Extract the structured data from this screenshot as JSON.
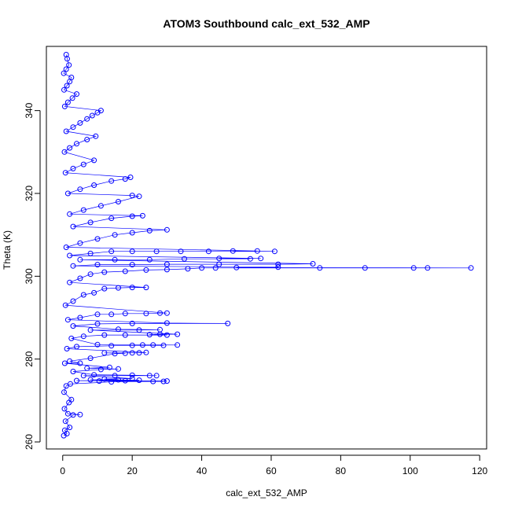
{
  "chart_data": {
    "type": "scatter",
    "title": "ATOM3 Southbound calc_ext_532_AMP",
    "xlabel": "calc_ext_532_AMP",
    "ylabel": "Theta (K)",
    "xlim": [
      -4.7,
      122.0
    ],
    "ylim": [
      258.3,
      355.5
    ],
    "x_ticks": [
      0,
      20,
      40,
      60,
      80,
      100,
      120
    ],
    "y_ticks": [
      260,
      280,
      300,
      320,
      340
    ],
    "grid": false,
    "legend": "none",
    "series": [
      {
        "color": "#0000ff",
        "marker": "open-circle",
        "connected": true,
        "points": [
          [
            0.3,
            261.5
          ],
          [
            0.6,
            262.8
          ],
          [
            1.2,
            262.0
          ],
          [
            2.0,
            263.5
          ],
          [
            0.8,
            265.0
          ],
          [
            1.5,
            266.8
          ],
          [
            3.0,
            266.5
          ],
          [
            5.0,
            266.6
          ],
          [
            0.5,
            268.0
          ],
          [
            1.8,
            269.5
          ],
          [
            2.5,
            270.2
          ],
          [
            0.4,
            272.0
          ],
          [
            1.0,
            273.5
          ],
          [
            2.2,
            274.0
          ],
          [
            4.0,
            274.8
          ],
          [
            8.0,
            275.0
          ],
          [
            10.5,
            274.7
          ],
          [
            12.0,
            275.2
          ],
          [
            14.0,
            274.5
          ],
          [
            16.0,
            275.0
          ],
          [
            18.0,
            274.8
          ],
          [
            20.0,
            275.3
          ],
          [
            22.0,
            274.9
          ],
          [
            26.0,
            274.6
          ],
          [
            29.0,
            274.6
          ],
          [
            30.0,
            274.7
          ],
          [
            6.0,
            276.0
          ],
          [
            9.0,
            276.2
          ],
          [
            15.0,
            276.0
          ],
          [
            20.0,
            276.1
          ],
          [
            25.0,
            276.0
          ],
          [
            27.0,
            276.0
          ],
          [
            3.0,
            277.0
          ],
          [
            7.0,
            277.8
          ],
          [
            11.0,
            277.5
          ],
          [
            13.5,
            278.0
          ],
          [
            16.0,
            277.6
          ],
          [
            0.6,
            279.0
          ],
          [
            2.0,
            279.5
          ],
          [
            5.0,
            279.0
          ],
          [
            8.0,
            280.2
          ],
          [
            12.0,
            281.5
          ],
          [
            15.0,
            281.3
          ],
          [
            18.0,
            281.4
          ],
          [
            20.0,
            281.5
          ],
          [
            22.0,
            281.5
          ],
          [
            24.0,
            281.6
          ],
          [
            1.2,
            282.5
          ],
          [
            4.0,
            283.0
          ],
          [
            10.0,
            283.5
          ],
          [
            14.0,
            283.2
          ],
          [
            20.0,
            283.3
          ],
          [
            23.0,
            283.4
          ],
          [
            26.0,
            283.4
          ],
          [
            29.0,
            283.3
          ],
          [
            33.0,
            283.4
          ],
          [
            2.5,
            285.0
          ],
          [
            6.0,
            285.5
          ],
          [
            12.0,
            285.8
          ],
          [
            18.0,
            285.8
          ],
          [
            25.0,
            285.9
          ],
          [
            28.0,
            286.0
          ],
          [
            30.0,
            285.8
          ],
          [
            33.0,
            286.0
          ],
          [
            8.0,
            287.0
          ],
          [
            16.0,
            287.2
          ],
          [
            22.0,
            287.0
          ],
          [
            28.0,
            287.1
          ],
          [
            3.0,
            288.0
          ],
          [
            10.0,
            288.5
          ],
          [
            20.0,
            288.6
          ],
          [
            30.0,
            288.7
          ],
          [
            47.5,
            288.6
          ],
          [
            1.5,
            289.5
          ],
          [
            5.0,
            290.0
          ],
          [
            10.0,
            290.8
          ],
          [
            14.0,
            290.8
          ],
          [
            18.0,
            291.0
          ],
          [
            24.0,
            291.0
          ],
          [
            28.0,
            291.1
          ],
          [
            30.0,
            291.1
          ],
          [
            0.8,
            293.0
          ],
          [
            3.0,
            294.0
          ],
          [
            6.0,
            295.5
          ],
          [
            9.0,
            296.0
          ],
          [
            12.0,
            297.0
          ],
          [
            16.0,
            297.2
          ],
          [
            20.0,
            297.3
          ],
          [
            24.0,
            297.3
          ],
          [
            2.0,
            298.5
          ],
          [
            5.0,
            299.5
          ],
          [
            8.0,
            300.5
          ],
          [
            12.0,
            301.0
          ],
          [
            18.0,
            301.2
          ],
          [
            24.0,
            301.5
          ],
          [
            30.0,
            301.6
          ],
          [
            36.0,
            301.8
          ],
          [
            40.0,
            302.0
          ],
          [
            44.0,
            302.0
          ],
          [
            50.0,
            302.1
          ],
          [
            62.0,
            302.2
          ],
          [
            74.0,
            302.0
          ],
          [
            87.0,
            302.0
          ],
          [
            101.0,
            302.0
          ],
          [
            105.0,
            302.0
          ],
          [
            117.5,
            302.0
          ],
          [
            3.0,
            302.5
          ],
          [
            10.0,
            302.8
          ],
          [
            20.0,
            302.8
          ],
          [
            30.0,
            302.9
          ],
          [
            45.0,
            302.9
          ],
          [
            62.0,
            302.9
          ],
          [
            72.0,
            303.0
          ],
          [
            5.0,
            304.0
          ],
          [
            15.0,
            304.0
          ],
          [
            25.0,
            304.0
          ],
          [
            35.0,
            304.2
          ],
          [
            45.0,
            304.3
          ],
          [
            54.0,
            304.2
          ],
          [
            57.0,
            304.3
          ],
          [
            2.0,
            305.0
          ],
          [
            8.0,
            305.5
          ],
          [
            14.0,
            306.0
          ],
          [
            20.0,
            306.0
          ],
          [
            27.0,
            306.0
          ],
          [
            34.0,
            306.0
          ],
          [
            42.0,
            306.0
          ],
          [
            49.0,
            306.1
          ],
          [
            56.0,
            306.1
          ],
          [
            61.0,
            306.0
          ],
          [
            1.0,
            307.0
          ],
          [
            5.0,
            308.0
          ],
          [
            10.0,
            309.0
          ],
          [
            15.0,
            310.0
          ],
          [
            20.0,
            310.5
          ],
          [
            25.0,
            311.0
          ],
          [
            30.0,
            311.2
          ],
          [
            3.0,
            312.0
          ],
          [
            8.0,
            313.0
          ],
          [
            14.0,
            314.0
          ],
          [
            20.0,
            314.5
          ],
          [
            23.0,
            314.6
          ],
          [
            2.0,
            315.0
          ],
          [
            6.0,
            316.0
          ],
          [
            11.0,
            317.0
          ],
          [
            16.0,
            318.0
          ],
          [
            20.0,
            319.5
          ],
          [
            22.0,
            319.3
          ],
          [
            1.5,
            320.0
          ],
          [
            5.0,
            321.0
          ],
          [
            9.0,
            322.0
          ],
          [
            14.0,
            323.0
          ],
          [
            18.0,
            323.5
          ],
          [
            19.5,
            323.9
          ],
          [
            0.8,
            325.0
          ],
          [
            3.0,
            326.0
          ],
          [
            6.0,
            327.0
          ],
          [
            9.0,
            328.0
          ],
          [
            0.5,
            330.0
          ],
          [
            2.0,
            331.0
          ],
          [
            4.0,
            332.0
          ],
          [
            7.0,
            333.0
          ],
          [
            9.5,
            333.8
          ],
          [
            1.0,
            335.0
          ],
          [
            3.0,
            336.0
          ],
          [
            5.0,
            337.0
          ],
          [
            7.0,
            338.0
          ],
          [
            8.5,
            338.8
          ],
          [
            10.0,
            339.5
          ],
          [
            11.0,
            340.0
          ],
          [
            0.6,
            341.0
          ],
          [
            1.5,
            342.0
          ],
          [
            2.8,
            343.0
          ],
          [
            4.0,
            344.0
          ],
          [
            0.4,
            345.0
          ],
          [
            1.2,
            346.0
          ],
          [
            2.0,
            347.0
          ],
          [
            2.5,
            348.0
          ],
          [
            0.3,
            349.0
          ],
          [
            1.0,
            350.0
          ],
          [
            1.8,
            351.0
          ],
          [
            1.3,
            352.5
          ],
          [
            1.0,
            353.5
          ]
        ]
      }
    ]
  }
}
